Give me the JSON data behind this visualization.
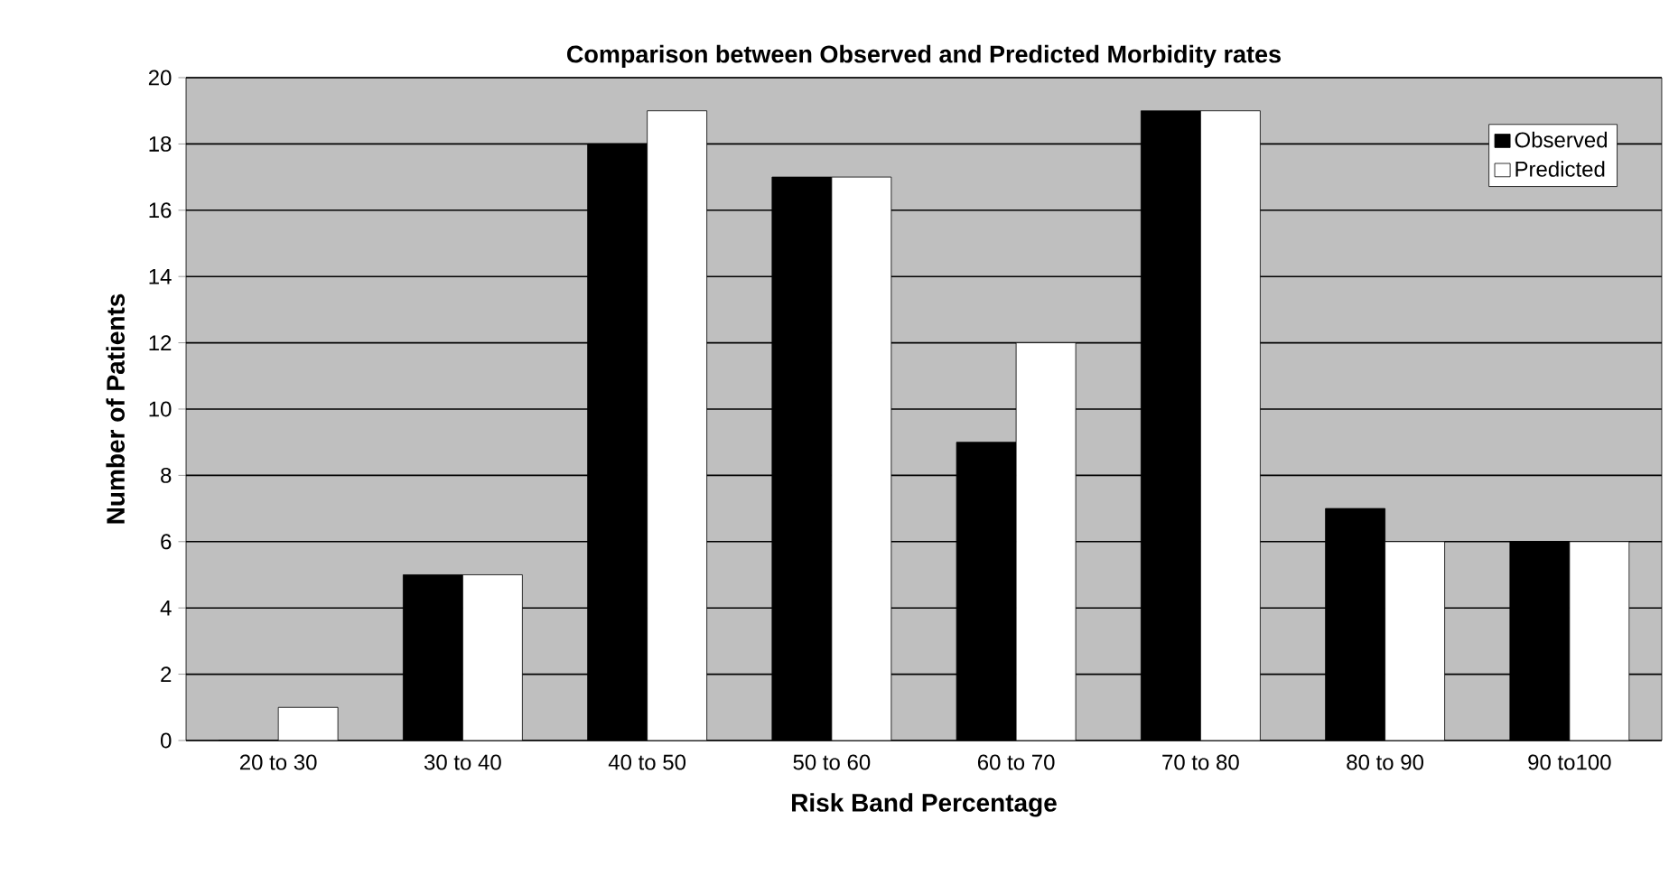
{
  "chart_data": {
    "type": "bar",
    "title": "Comparison between Observed and Predicted Morbidity rates",
    "xlabel": "Risk Band Percentage",
    "ylabel": "Number of Patients",
    "categories": [
      "20 to 30",
      "30 to 40",
      "40 to 50",
      "50 to 60",
      "60 to 70",
      "70 to 80",
      "80 to 90",
      "90 to100"
    ],
    "series": [
      {
        "name": "Observed",
        "color": "#000000",
        "values": [
          0,
          5,
          18,
          17,
          9,
          19,
          7,
          6
        ]
      },
      {
        "name": "Predicted",
        "color": "#ffffff",
        "values": [
          1,
          5,
          19,
          17,
          12,
          19,
          6,
          6
        ]
      }
    ],
    "ylim": [
      0,
      20
    ],
    "yticks": [
      0,
      2,
      4,
      6,
      8,
      10,
      12,
      14,
      16,
      18,
      20
    ],
    "grid": "y",
    "legend": "top right"
  }
}
